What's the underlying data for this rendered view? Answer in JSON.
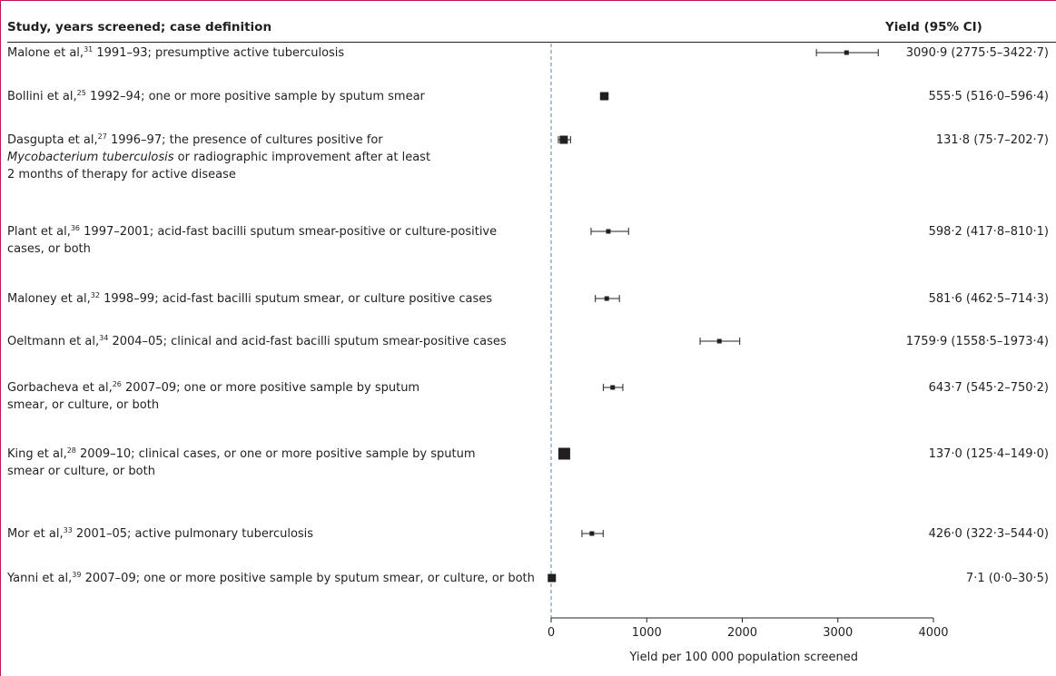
{
  "header": {
    "study_label": "Study, years screened; case definition",
    "yield_label": "Yield (95% CI)"
  },
  "studies": [
    {
      "author": "Malone et al,",
      "ref": "31",
      "text": " 1991–93; presumptive active tuberculosis",
      "lines": [],
      "yield_text": "3090·9 (2775·5–3422·7)"
    },
    {
      "author": "Bollini et al,",
      "ref": "25",
      "text": " 1992–94; one or more positive sample by sputum smear",
      "lines": [],
      "yield_text": "555·5 (516·0–596·4)"
    },
    {
      "author": "Dasgupta et al,",
      "ref": "27",
      "text": " 1996–97; the presence of cultures positive for",
      "lines_italic": "Mycobacterium tuberculosis",
      "lines": [
        " or radiographic improvement after at least",
        "2 months of therapy for active disease"
      ],
      "yield_text": "131·8 (75·7–202·7)"
    },
    {
      "author": "Plant et al,",
      "ref": "36",
      "text": " 1997–2001; acid-fast bacilli sputum smear-positive or culture-positive",
      "lines": [
        "cases, or both"
      ],
      "yield_text": "598·2 (417·8–810·1)"
    },
    {
      "author": "Maloney et al,",
      "ref": "32",
      "text": " 1998–99; acid-fast bacilli sputum smear, or culture positive cases",
      "lines": [],
      "yield_text": "581·6 (462·5–714·3)"
    },
    {
      "author": "Oeltmann et al,",
      "ref": "34",
      "text": " 2004–05; clinical and acid-fast bacilli sputum smear-positive cases",
      "lines": [],
      "yield_text": "1759·9 (1558·5–1973·4)"
    },
    {
      "author": "Gorbacheva et al,",
      "ref": "26",
      "text": " 2007–09; one or more positive sample by sputum",
      "lines": [
        "smear, or culture, or both"
      ],
      "yield_text": "643·7 (545·2–750·2)"
    },
    {
      "author": "King et al,",
      "ref": "28",
      "text": " 2009–10; clinical cases, or one or more positive sample by sputum",
      "lines": [
        "smear or culture, or both"
      ],
      "yield_text": "137·0 (125·4–149·0)"
    },
    {
      "author": "Mor et al,",
      "ref": "33",
      "text": " 2001–05; active pulmonary tuberculosis",
      "lines": [],
      "yield_text": "426·0 (322·3–544·0)"
    },
    {
      "author": "Yanni et al,",
      "ref": "39",
      "text": " 2007–09; one or more positive sample by sputum smear, or culture, or both",
      "lines": [],
      "yield_text": "7·1 (0·0–30·5)"
    }
  ],
  "chart_data": {
    "type": "forest",
    "xlabel": "Yield per 100 000 population screened",
    "xlim": [
      0,
      4000
    ],
    "xticks": [
      0,
      1000,
      2000,
      3000,
      4000
    ],
    "tick_labels": [
      "0",
      "1000",
      "2000",
      "3000",
      "4000"
    ],
    "reference_line": 0,
    "studies": [
      {
        "label": "Malone et al",
        "estimate": 3090.9,
        "lower": 2775.5,
        "upper": 3422.7,
        "weight": "small"
      },
      {
        "label": "Bollini et al",
        "estimate": 555.5,
        "lower": 516.0,
        "upper": 596.4,
        "weight": "medium"
      },
      {
        "label": "Dasgupta et al",
        "estimate": 131.8,
        "lower": 75.7,
        "upper": 202.7,
        "weight": "medium"
      },
      {
        "label": "Plant et al",
        "estimate": 598.2,
        "lower": 417.8,
        "upper": 810.1,
        "weight": "small"
      },
      {
        "label": "Maloney et al",
        "estimate": 581.6,
        "lower": 462.5,
        "upper": 714.3,
        "weight": "small"
      },
      {
        "label": "Oeltmann et al",
        "estimate": 1759.9,
        "lower": 1558.5,
        "upper": 1973.4,
        "weight": "small"
      },
      {
        "label": "Gorbacheva et al",
        "estimate": 643.7,
        "lower": 545.2,
        "upper": 750.2,
        "weight": "small"
      },
      {
        "label": "King et al",
        "estimate": 137.0,
        "lower": 125.4,
        "upper": 149.0,
        "weight": "large"
      },
      {
        "label": "Mor et al",
        "estimate": 426.0,
        "lower": 322.3,
        "upper": 544.0,
        "weight": "small"
      },
      {
        "label": "Yanni et al",
        "estimate": 7.1,
        "lower": 0.0,
        "upper": 30.5,
        "weight": "medium"
      }
    ],
    "colors": {
      "ink": "#231f20",
      "reference": "#5b7fa6",
      "frame": "#c0105a"
    }
  }
}
